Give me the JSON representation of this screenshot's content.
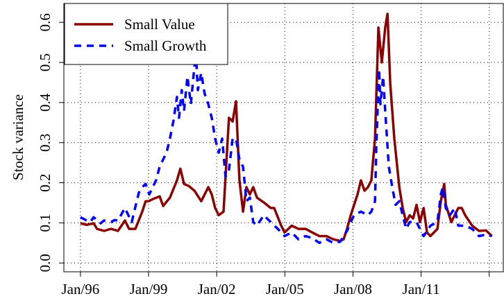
{
  "chart_data": {
    "type": "line",
    "ylabel": "Stock variance",
    "xlim": [
      1995.27,
      2014.62
    ],
    "xticks": [
      {
        "value": 1996,
        "label": "Jan/96"
      },
      {
        "value": 1999,
        "label": "Jan/99"
      },
      {
        "value": 2002,
        "label": "Jan/02"
      },
      {
        "value": 2005,
        "label": "Jan/05"
      },
      {
        "value": 2008,
        "label": "Jan/08"
      },
      {
        "value": 2011,
        "label": "Jan/11"
      },
      {
        "value": 2014,
        "label": null
      }
    ],
    "ylim": [
      -0.022,
      0.647
    ],
    "yticks": [
      {
        "value": 0,
        "label": "0.0"
      },
      0.1,
      0.2,
      0.3,
      0.4,
      0.5,
      0.6
    ],
    "grid": true,
    "legend": "top-left",
    "series": [
      {
        "name": "Small Value",
        "color": "#8b0000",
        "dash": false,
        "x": [
          1996.0,
          1996.28,
          1996.58,
          1996.73,
          1997.04,
          1997.35,
          1997.65,
          1997.96,
          1998.14,
          1998.42,
          1998.72,
          1998.87,
          1999.0,
          1999.18,
          1999.49,
          1999.64,
          1999.94,
          2000.25,
          2000.4,
          2000.56,
          2000.77,
          2001.02,
          2001.32,
          2001.63,
          2001.78,
          2001.93,
          2002.09,
          2002.3,
          2002.54,
          2002.7,
          2002.85,
          2003.0,
          2003.16,
          2003.31,
          2003.46,
          2003.61,
          2003.77,
          2004.07,
          2004.38,
          2004.53,
          2004.84,
          2004.99,
          2005.3,
          2005.6,
          2005.91,
          2006.21,
          2006.52,
          2006.83,
          2007.13,
          2007.44,
          2007.59,
          2007.74,
          2007.9,
          2008.05,
          2008.2,
          2008.35,
          2008.51,
          2008.66,
          2008.81,
          2008.97,
          2009.12,
          2009.27,
          2009.42,
          2009.52,
          2009.64,
          2009.82,
          2010.04,
          2010.19,
          2010.34,
          2010.5,
          2010.65,
          2010.8,
          2010.95,
          2011.11,
          2011.26,
          2011.41,
          2011.72,
          2011.87,
          2012.02,
          2012.09,
          2012.33,
          2012.48,
          2012.64,
          2012.79,
          2012.94,
          2013.25,
          2013.55,
          2013.86,
          2014.12
        ],
        "values": [
          0.099,
          0.095,
          0.099,
          0.085,
          0.08,
          0.085,
          0.08,
          0.106,
          0.085,
          0.085,
          0.128,
          0.154,
          0.154,
          0.159,
          0.166,
          0.142,
          0.163,
          0.206,
          0.235,
          0.197,
          0.192,
          0.18,
          0.154,
          0.189,
          0.171,
          0.137,
          0.119,
          0.128,
          0.362,
          0.353,
          0.403,
          0.206,
          0.128,
          0.189,
          0.171,
          0.189,
          0.163,
          0.151,
          0.137,
          0.137,
          0.093,
          0.076,
          0.093,
          0.085,
          0.085,
          0.076,
          0.067,
          0.067,
          0.059,
          0.055,
          0.059,
          0.085,
          0.119,
          0.145,
          0.171,
          0.206,
          0.18,
          0.189,
          0.206,
          0.31,
          0.587,
          0.5,
          0.587,
          0.621,
          0.448,
          0.31,
          0.189,
          0.137,
          0.102,
          0.119,
          0.111,
          0.145,
          0.102,
          0.137,
          0.076,
          0.067,
          0.085,
          0.154,
          0.197,
          0.145,
          0.102,
          0.119,
          0.137,
          0.137,
          0.119,
          0.093,
          0.08,
          0.081,
          0.067
        ]
      },
      {
        "name": "Small Growth",
        "color": "#0000ff",
        "dash": true,
        "x": [
          1996.0,
          1996.28,
          1996.43,
          1996.58,
          1996.89,
          1997.04,
          1997.35,
          1997.5,
          1997.65,
          1997.96,
          1998.11,
          1998.26,
          1998.42,
          1998.57,
          1998.72,
          1998.87,
          1999.03,
          1999.33,
          1999.49,
          1999.64,
          1999.79,
          1999.94,
          2000.09,
          2000.25,
          2000.34,
          2000.46,
          2000.56,
          2000.71,
          2000.86,
          2001.02,
          2001.08,
          2001.17,
          2001.32,
          2001.47,
          2001.63,
          2001.78,
          2001.93,
          2002.09,
          2002.24,
          2002.39,
          2002.54,
          2002.7,
          2002.85,
          2003.0,
          2003.16,
          2003.31,
          2003.46,
          2003.61,
          2003.77,
          2004.07,
          2004.38,
          2004.69,
          2004.99,
          2005.3,
          2005.6,
          2005.91,
          2006.21,
          2006.52,
          2006.83,
          2007.13,
          2007.44,
          2007.74,
          2007.9,
          2008.05,
          2008.35,
          2008.66,
          2008.81,
          2008.97,
          2009.03,
          2009.15,
          2009.21,
          2009.33,
          2009.42,
          2009.58,
          2009.73,
          2009.88,
          2010.04,
          2010.19,
          2010.34,
          2010.5,
          2010.8,
          2011.11,
          2011.41,
          2011.72,
          2011.87,
          2011.96,
          2012.09,
          2012.27,
          2012.48,
          2012.64,
          2012.94,
          2013.25,
          2013.55,
          2013.86,
          2014.12
        ],
        "values": [
          0.114,
          0.106,
          0.102,
          0.114,
          0.099,
          0.106,
          0.102,
          0.107,
          0.106,
          0.137,
          0.119,
          0.102,
          0.14,
          0.175,
          0.189,
          0.197,
          0.171,
          0.206,
          0.24,
          0.258,
          0.275,
          0.31,
          0.353,
          0.414,
          0.362,
          0.431,
          0.379,
          0.465,
          0.396,
          0.491,
          0.526,
          0.431,
          0.474,
          0.422,
          0.396,
          0.362,
          0.31,
          0.275,
          0.31,
          0.215,
          0.232,
          0.31,
          0.31,
          0.258,
          0.24,
          0.154,
          0.163,
          0.102,
          0.093,
          0.119,
          0.102,
          0.085,
          0.067,
          0.076,
          0.059,
          0.067,
          0.062,
          0.05,
          0.059,
          0.05,
          0.053,
          0.08,
          0.102,
          0.119,
          0.128,
          0.119,
          0.128,
          0.154,
          0.292,
          0.483,
          0.396,
          0.465,
          0.379,
          0.24,
          0.189,
          0.145,
          0.154,
          0.119,
          0.085,
          0.102,
          0.102,
          0.067,
          0.093,
          0.102,
          0.171,
          0.189,
          0.137,
          0.119,
          0.137,
          0.093,
          0.093,
          0.085,
          0.067,
          0.071,
          0.067
        ]
      }
    ]
  }
}
